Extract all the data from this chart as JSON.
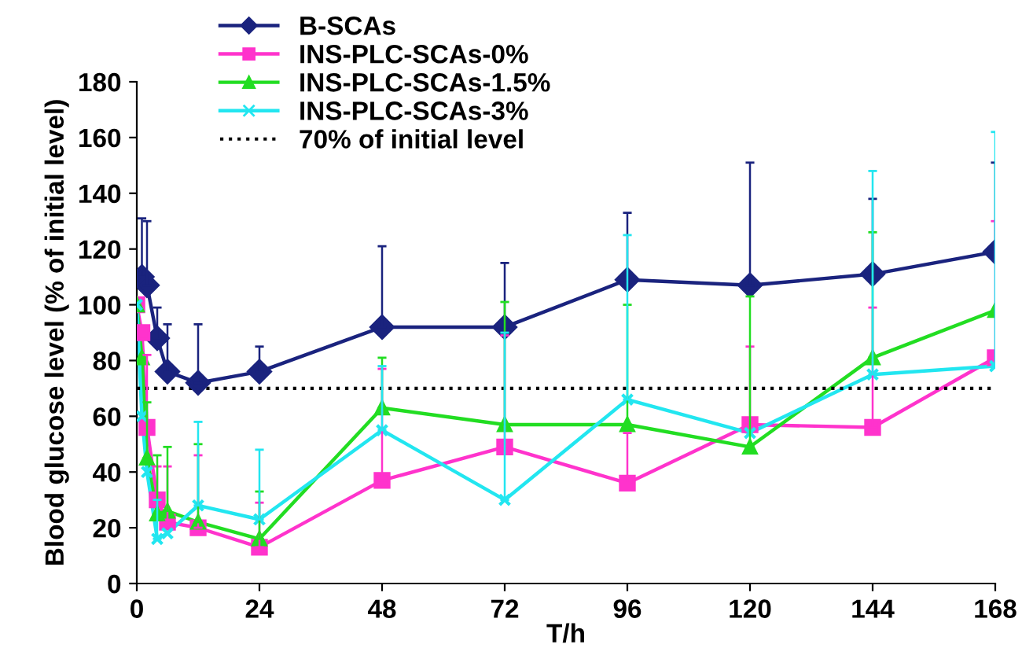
{
  "chart_data": {
    "type": "line",
    "xlabel": "T/h",
    "ylabel": "Blood glucose level (% of initial level)",
    "x": [
      0,
      1,
      2,
      4,
      6,
      12,
      24,
      48,
      72,
      96,
      120,
      144,
      168
    ],
    "xlim": [
      0,
      168
    ],
    "xticks": [
      0,
      24,
      48,
      72,
      96,
      120,
      144,
      168
    ],
    "ylim": [
      0,
      180
    ],
    "yticks": [
      0,
      20,
      40,
      60,
      80,
      100,
      120,
      140,
      160,
      180
    ],
    "grid": false,
    "legend": "top left",
    "series": [
      {
        "name": "B-SCAs",
        "color": "#1a237e",
        "marker": "diamond",
        "values": [
          null,
          110,
          107,
          88,
          76,
          72,
          76,
          92,
          92,
          109,
          107,
          111,
          119
        ],
        "errors": [
          null,
          [
            110,
            131
          ],
          [
            107,
            130
          ],
          [
            88,
            99
          ],
          [
            76,
            93
          ],
          [
            72,
            93
          ],
          [
            76,
            85
          ],
          [
            92,
            121
          ],
          [
            92,
            115
          ],
          [
            109,
            133
          ],
          [
            107,
            151
          ],
          [
            111,
            138
          ],
          [
            119,
            151
          ]
        ]
      },
      {
        "name": "INS-PLC-SCAs-0%",
        "color": "#ff33cc",
        "marker": "square",
        "values": [
          100,
          90,
          56,
          30,
          22,
          20,
          13,
          37,
          49,
          36,
          57,
          56,
          81
        ],
        "errors": [
          null,
          null,
          [
            56,
            82
          ],
          [
            30,
            42
          ],
          [
            22,
            42
          ],
          [
            20,
            46
          ],
          [
            13,
            29
          ],
          [
            37,
            77
          ],
          [
            49,
            89
          ],
          [
            36,
            54
          ],
          [
            57,
            85
          ],
          [
            56,
            99
          ],
          [
            81,
            130
          ]
        ]
      },
      {
        "name": "INS-PLC-SCAs-1.5%",
        "color": "#22dd22",
        "marker": "triangle",
        "values": [
          100,
          81,
          45,
          25,
          26,
          22,
          16,
          63,
          57,
          57,
          49,
          81,
          98
        ],
        "errors": [
          null,
          null,
          [
            45,
            65
          ],
          [
            25,
            46
          ],
          [
            26,
            49
          ],
          [
            22,
            50
          ],
          [
            16,
            33
          ],
          [
            63,
            81
          ],
          [
            57,
            101
          ],
          [
            57,
            100
          ],
          [
            49,
            103
          ],
          [
            81,
            126
          ],
          null
        ]
      },
      {
        "name": "INS-PLC-SCAs-3%",
        "color": "#22e6f0",
        "marker": "cross",
        "values": [
          100,
          60,
          40,
          16,
          18,
          28,
          23,
          55,
          30,
          66,
          54,
          75,
          78
        ],
        "errors": [
          null,
          null,
          null,
          [
            16,
            30
          ],
          null,
          [
            28,
            58
          ],
          [
            23,
            48
          ],
          [
            55,
            78
          ],
          [
            30,
            90
          ],
          [
            66,
            125
          ],
          null,
          [
            75,
            148
          ],
          [
            78,
            162
          ]
        ]
      }
    ],
    "ref_lines": [
      {
        "axis": "y",
        "value": 70,
        "label": "70% of initial level",
        "color": "#000000",
        "line_style": "dotted"
      }
    ]
  }
}
